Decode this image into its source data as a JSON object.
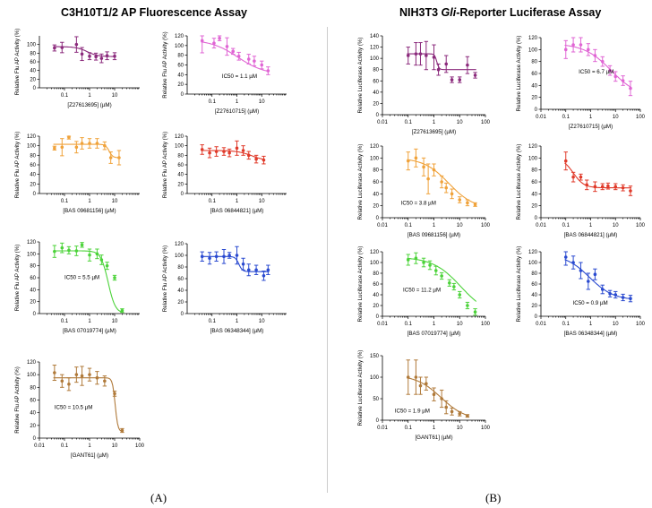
{
  "panels": {
    "A": {
      "title": "C3H10T1/2 AP Fluorescence Assay",
      "letter": "(A)"
    },
    "B": {
      "title_pre": "NIH3T3 ",
      "title_gli": "Gli",
      "title_post": "-Reporter Luciferase Assay",
      "letter": "(B)"
    }
  },
  "chart_data": [
    {
      "id": "A1",
      "panel": "A",
      "type": "scatter",
      "compound": "[Z27613695] (µM)",
      "ylabel": "Relative Flu AP Activity (%)",
      "color": "#8b2a7c",
      "xlim": [
        0.01,
        100
      ],
      "ylim": [
        0,
        120
      ],
      "xticks": [
        0.1,
        1,
        10
      ],
      "yticks": [
        0,
        20,
        40,
        60,
        80,
        100
      ],
      "x": [
        0.04,
        0.08,
        0.3,
        0.5,
        1,
        1.8,
        3,
        5,
        10
      ],
      "y": [
        92,
        93,
        100,
        78,
        73,
        72,
        68,
        74,
        73
      ],
      "err": [
        7,
        12,
        18,
        15,
        8,
        8,
        10,
        9,
        8
      ],
      "fit": {
        "top": 95,
        "bottom": 72,
        "ic50": 0.8,
        "hill": 2
      },
      "ic50_label": ""
    },
    {
      "id": "A2",
      "panel": "A",
      "type": "scatter",
      "compound": "[Z27610715] (µM)",
      "ylabel": "Relative Flu AP Activity (%)",
      "color": "#e065d4",
      "xlim": [
        0.01,
        100
      ],
      "ylim": [
        0,
        120
      ],
      "xticks": [
        0.1,
        1,
        10
      ],
      "yticks": [
        0,
        20,
        40,
        60,
        80,
        100,
        120
      ],
      "x": [
        0.04,
        0.12,
        0.2,
        0.4,
        0.7,
        1.2,
        3,
        5,
        10,
        18
      ],
      "y": [
        110,
        105,
        115,
        98,
        88,
        78,
        72,
        68,
        60,
        48
      ],
      "err": [
        25,
        10,
        5,
        18,
        6,
        8,
        10,
        10,
        8,
        8
      ],
      "fit": {
        "top": 112,
        "bottom": 40,
        "ic50": 1.1,
        "hill": 0.8
      },
      "ic50_label": "IC50 = 1.1 µM"
    },
    {
      "id": "A3",
      "panel": "A",
      "type": "scatter",
      "compound": "[BAS 09681156] (µM)",
      "ylabel": "Relative Flu AP Activity (%)",
      "color": "#f0a23a",
      "xlim": [
        0.01,
        100
      ],
      "ylim": [
        0,
        120
      ],
      "xticks": [
        0.1,
        1,
        10
      ],
      "yticks": [
        0,
        20,
        40,
        60,
        80,
        100,
        120
      ],
      "x": [
        0.04,
        0.08,
        0.15,
        0.3,
        0.5,
        1,
        2,
        4,
        7,
        15
      ],
      "y": [
        95,
        97,
        118,
        97,
        105,
        105,
        105,
        100,
        75,
        75
      ],
      "err": [
        4,
        18,
        4,
        12,
        12,
        10,
        10,
        8,
        12,
        15
      ],
      "fit": {
        "top": 103,
        "bottom": 75,
        "ic50": 6,
        "hill": 6
      },
      "ic50_label": ""
    },
    {
      "id": "A4",
      "panel": "A",
      "type": "scatter",
      "compound": "[BAS 06844821] (µM)",
      "ylabel": "Relative Flu AP Activity (%)",
      "color": "#e03a2a",
      "xlim": [
        0.01,
        100
      ],
      "ylim": [
        0,
        120
      ],
      "xticks": [
        0.1,
        1,
        10
      ],
      "yticks": [
        0,
        20,
        40,
        60,
        80,
        100,
        120
      ],
      "x": [
        0.04,
        0.08,
        0.15,
        0.3,
        0.5,
        1,
        1.8,
        3,
        6,
        12
      ],
      "y": [
        92,
        85,
        88,
        88,
        85,
        95,
        90,
        80,
        72,
        70
      ],
      "err": [
        10,
        10,
        10,
        8,
        8,
        15,
        10,
        8,
        8,
        8
      ],
      "fit": {
        "top": 90,
        "bottom": 68,
        "ic50": 4,
        "hill": 1.5
      },
      "ic50_label": ""
    },
    {
      "id": "A5",
      "panel": "A",
      "type": "scatter",
      "compound": "[BAS 07019774] (µM)",
      "ylabel": "Relative Flu AP Activity (%)",
      "color": "#4cd33a",
      "xlim": [
        0.01,
        100
      ],
      "ylim": [
        0,
        120
      ],
      "xticks": [
        0.1,
        1,
        10
      ],
      "yticks": [
        0,
        20,
        40,
        60,
        80,
        100,
        120
      ],
      "x": [
        0.04,
        0.08,
        0.15,
        0.3,
        0.5,
        1,
        2,
        3,
        5,
        10,
        20
      ],
      "y": [
        104,
        110,
        106,
        105,
        115,
        98,
        100,
        90,
        80,
        60,
        5
      ],
      "err": [
        10,
        8,
        6,
        8,
        4,
        10,
        8,
        8,
        6,
        4,
        3
      ],
      "fit": {
        "top": 105,
        "bottom": 0,
        "ic50": 5.5,
        "hill": 3
      },
      "ic50_label": "IC50 = 5.5 µM"
    },
    {
      "id": "A6",
      "panel": "A",
      "type": "scatter",
      "compound": "[BAS 06348344] (µM)",
      "ylabel": "Relative Flu AP Activity (%)",
      "color": "#2a4ad0",
      "xlim": [
        0.01,
        100
      ],
      "ylim": [
        0,
        120
      ],
      "xticks": [
        0.1,
        1,
        10
      ],
      "yticks": [
        0,
        20,
        40,
        60,
        80,
        100,
        120
      ],
      "x": [
        0.04,
        0.08,
        0.15,
        0.3,
        0.5,
        1,
        1.8,
        3,
        6,
        12,
        18
      ],
      "y": [
        98,
        95,
        98,
        98,
        100,
        100,
        85,
        75,
        75,
        65,
        75
      ],
      "err": [
        8,
        10,
        8,
        12,
        5,
        15,
        10,
        10,
        8,
        8,
        8
      ],
      "fit": {
        "top": 98,
        "bottom": 72,
        "ic50": 1.2,
        "hill": 6
      },
      "ic50_label": ""
    },
    {
      "id": "A7",
      "panel": "A",
      "type": "scatter",
      "compound": "[GANT61] (µM)",
      "ylabel": "Relative Flu AP Activity (%)",
      "color": "#b07a3a",
      "xlim": [
        0.01,
        100
      ],
      "ylim": [
        0,
        120
      ],
      "xticks": [
        0.01,
        0.1,
        1,
        10,
        100
      ],
      "yticks": [
        0,
        20,
        40,
        60,
        80,
        100,
        120
      ],
      "x": [
        0.04,
        0.08,
        0.15,
        0.3,
        0.5,
        1,
        2,
        4,
        10,
        20
      ],
      "y": [
        103,
        90,
        85,
        100,
        98,
        100,
        95,
        90,
        70,
        12
      ],
      "err": [
        12,
        10,
        10,
        12,
        15,
        10,
        10,
        8,
        4,
        3
      ],
      "fit": {
        "top": 95,
        "bottom": 10,
        "ic50": 10.5,
        "hill": 8
      },
      "ic50_label": "IC50 = 10.5 µM"
    },
    {
      "id": "B1",
      "panel": "B",
      "type": "scatter",
      "compound": "[Z27613695] (µM)",
      "ylabel": "Relative Luciferase Activity (%)",
      "color": "#8b2a7c",
      "xlim": [
        0.01,
        100
      ],
      "ylim": [
        0,
        140
      ],
      "xticks": [
        0.01,
        0.1,
        1,
        10,
        100
      ],
      "yticks": [
        0,
        20,
        40,
        60,
        80,
        100,
        120,
        140
      ],
      "x": [
        0.1,
        0.2,
        0.3,
        0.5,
        1,
        1.5,
        3,
        5,
        10,
        20,
        40
      ],
      "y": [
        105,
        108,
        108,
        105,
        102,
        80,
        90,
        62,
        62,
        88,
        70
      ],
      "err": [
        15,
        20,
        20,
        25,
        22,
        10,
        15,
        5,
        5,
        15,
        5
      ],
      "fit": {
        "top": 108,
        "bottom": 80,
        "ic50": 1.3,
        "hill": 10
      },
      "ic50_label": ""
    },
    {
      "id": "B2",
      "panel": "B",
      "type": "scatter",
      "compound": "[Z27610715] (µM)",
      "ylabel": "Relative Luciferase Activity (%)",
      "color": "#e065d4",
      "xlim": [
        0.01,
        100
      ],
      "ylim": [
        0,
        120
      ],
      "xticks": [
        0.01,
        0.1,
        1,
        10,
        100
      ],
      "yticks": [
        0,
        20,
        40,
        60,
        80,
        100,
        120
      ],
      "x": [
        0.1,
        0.2,
        0.4,
        0.8,
        1.5,
        3,
        6,
        10,
        20,
        40
      ],
      "y": [
        100,
        108,
        108,
        100,
        90,
        80,
        65,
        55,
        48,
        35
      ],
      "err": [
        15,
        12,
        12,
        10,
        10,
        8,
        8,
        8,
        8,
        12
      ],
      "fit": {
        "top": 110,
        "bottom": 20,
        "ic50": 6.7,
        "hill": 0.8
      },
      "ic50_label": "IC50 = 6.7 µM"
    },
    {
      "id": "B3",
      "panel": "B",
      "type": "scatter",
      "compound": "[BAS 09681156] (µM)",
      "ylabel": "Relative Luciferase Activity (%)",
      "color": "#f0a23a",
      "xlim": [
        0.01,
        100
      ],
      "ylim": [
        0,
        120
      ],
      "xticks": [
        0.01,
        0.1,
        1,
        10,
        100
      ],
      "yticks": [
        0,
        20,
        40,
        60,
        80,
        100,
        120
      ],
      "x": [
        0.1,
        0.2,
        0.4,
        0.6,
        1,
        2,
        3,
        5,
        10,
        20,
        40
      ],
      "y": [
        95,
        100,
        85,
        65,
        80,
        60,
        50,
        40,
        30,
        25,
        22
      ],
      "err": [
        15,
        15,
        15,
        25,
        10,
        10,
        8,
        8,
        5,
        5,
        3
      ],
      "fit": {
        "top": 100,
        "bottom": 15,
        "ic50": 3.8,
        "hill": 0.9
      },
      "ic50_label": "IC50 = 3.8 µM"
    },
    {
      "id": "B4",
      "panel": "B",
      "type": "scatter",
      "compound": "[BAS 06844821] (µM)",
      "ylabel": "Relative Luciferase Activity (%)",
      "color": "#e03a2a",
      "xlim": [
        0.01,
        100
      ],
      "ylim": [
        0,
        120
      ],
      "xticks": [
        0.01,
        0.1,
        1,
        10,
        100
      ],
      "yticks": [
        0,
        20,
        40,
        60,
        80,
        100,
        120
      ],
      "x": [
        0.1,
        0.2,
        0.4,
        0.7,
        1.5,
        3,
        5,
        10,
        20,
        40
      ],
      "y": [
        95,
        68,
        68,
        55,
        52,
        52,
        53,
        52,
        50,
        45
      ],
      "err": [
        15,
        8,
        5,
        8,
        8,
        5,
        5,
        5,
        5,
        8
      ],
      "fit": {
        "top": 100,
        "bottom": 50,
        "ic50": 0.2,
        "hill": 2
      },
      "ic50_label": ""
    },
    {
      "id": "B5",
      "panel": "B",
      "type": "scatter",
      "compound": "[BAS 07019774] (µM)",
      "ylabel": "Relative Luciferase Activity (%)",
      "color": "#4cd33a",
      "xlim": [
        0.01,
        100
      ],
      "ylim": [
        0,
        120
      ],
      "xticks": [
        0.01,
        0.1,
        1,
        10,
        100
      ],
      "yticks": [
        0,
        20,
        40,
        60,
        80,
        100,
        120
      ],
      "x": [
        0.1,
        0.2,
        0.4,
        0.7,
        1.2,
        2,
        4,
        6,
        10,
        20,
        40
      ],
      "y": [
        105,
        108,
        100,
        95,
        85,
        75,
        62,
        55,
        40,
        20,
        8
      ],
      "err": [
        10,
        10,
        8,
        8,
        8,
        6,
        6,
        6,
        6,
        6,
        6
      ],
      "fit": {
        "top": 110,
        "bottom": 0,
        "ic50": 11.2,
        "hill": 0.8
      },
      "ic50_label": "IC50 = 11.2 µM"
    },
    {
      "id": "B6",
      "panel": "B",
      "type": "scatter",
      "compound": "[BAS 06348344] (µM)",
      "ylabel": "Relative Luciferase Activity (%)",
      "color": "#2a4ad0",
      "xlim": [
        0.01,
        100
      ],
      "ylim": [
        0,
        120
      ],
      "xticks": [
        0.01,
        0.1,
        1,
        10,
        100
      ],
      "yticks": [
        0,
        20,
        40,
        60,
        80,
        100,
        120
      ],
      "x": [
        0.1,
        0.2,
        0.4,
        0.8,
        1.5,
        3,
        6,
        10,
        20,
        40
      ],
      "y": [
        110,
        100,
        85,
        65,
        78,
        50,
        42,
        40,
        35,
        33
      ],
      "err": [
        15,
        12,
        15,
        15,
        10,
        8,
        6,
        6,
        6,
        6
      ],
      "fit": {
        "top": 115,
        "bottom": 30,
        "ic50": 0.9,
        "hill": 0.9
      },
      "ic50_label": "IC50 = 0.9 µM"
    },
    {
      "id": "B7",
      "panel": "B",
      "type": "scatter",
      "compound": "[GANT61] (µM)",
      "ylabel": "Relative Luciferase Activity (%)",
      "color": "#b07a3a",
      "xlim": [
        0.01,
        100
      ],
      "ylim": [
        0,
        150
      ],
      "xticks": [
        0.01,
        0.1,
        1,
        10,
        100
      ],
      "yticks": [
        0,
        50,
        100,
        150
      ],
      "x": [
        0.1,
        0.2,
        0.3,
        0.5,
        1,
        2,
        3,
        5,
        10,
        20
      ],
      "y": [
        100,
        100,
        80,
        85,
        60,
        50,
        30,
        20,
        15,
        10
      ],
      "err": [
        40,
        40,
        20,
        15,
        15,
        20,
        15,
        8,
        5,
        3
      ],
      "fit": {
        "top": 105,
        "bottom": 0,
        "ic50": 1.9,
        "hill": 0.9
      },
      "ic50_label": "IC50 = 1.9 µM"
    }
  ]
}
